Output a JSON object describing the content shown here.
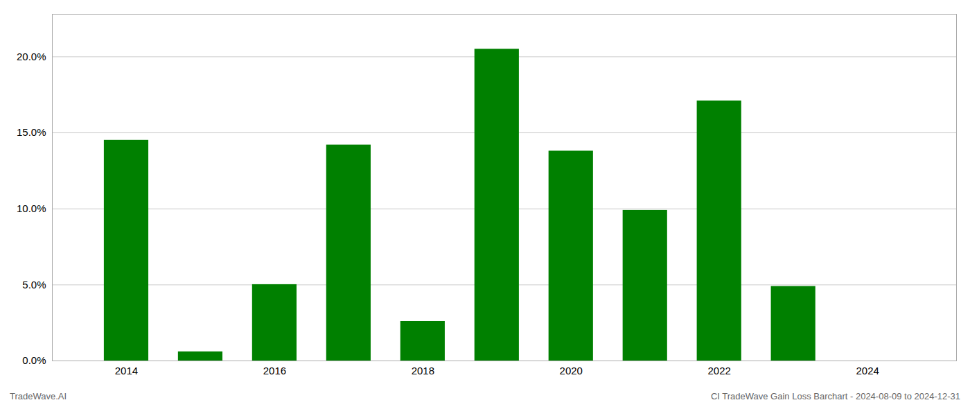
{
  "chart_data": {
    "type": "bar",
    "x": [
      2014,
      2015,
      2016,
      2017,
      2018,
      2019,
      2020,
      2021,
      2022,
      2023,
      2024
    ],
    "values": [
      0.1451,
      0.006,
      0.0502,
      0.142,
      0.026,
      0.205,
      0.138,
      0.099,
      0.171,
      0.049,
      0.0
    ],
    "color": "#008000",
    "xlim": [
      2013.0,
      2025.2
    ],
    "xticks": [
      2014,
      2016,
      2018,
      2020,
      2022,
      2024
    ],
    "ylim": [
      0,
      0.228
    ],
    "yticks": [
      {
        "value": 0.0,
        "label": "0.0%"
      },
      {
        "value": 0.05,
        "label": "5.0%"
      },
      {
        "value": 0.1,
        "label": "10.0%"
      },
      {
        "value": 0.15,
        "label": "15.0%"
      },
      {
        "value": 0.2,
        "label": "20.0%"
      }
    ],
    "grid": true,
    "annotations": [
      "TradeWave.AI",
      "CI TradeWave Gain Loss Barchart - 2024-08-09 to 2024-12-31"
    ]
  }
}
